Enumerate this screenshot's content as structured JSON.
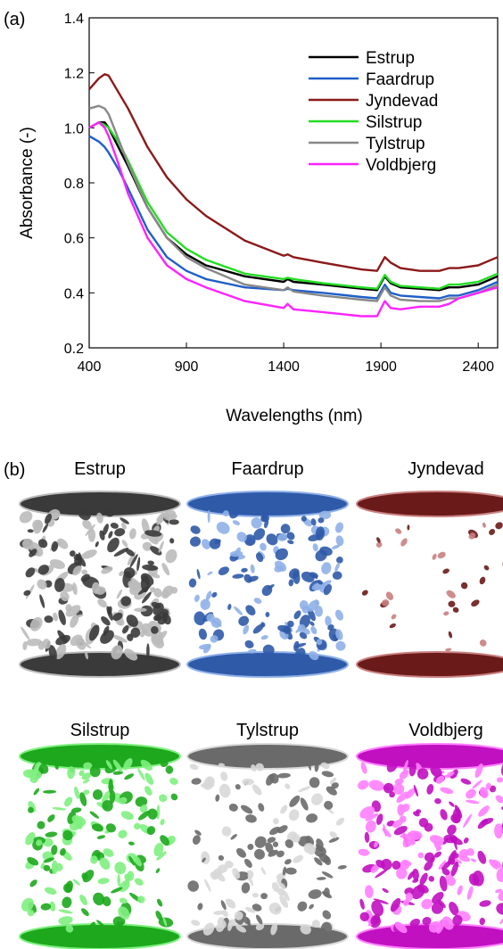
{
  "chart_data": {
    "type": "line",
    "panel_label": "(a)",
    "x_label": "Wavelengths (nm)",
    "y_label": "Absorbance (-)",
    "x": [
      400,
      450,
      480,
      500,
      550,
      600,
      700,
      800,
      900,
      1000,
      1200,
      1400,
      1420,
      1450,
      1600,
      1800,
      1880,
      1920,
      1950,
      2000,
      2100,
      2200,
      2250,
      2300,
      2400,
      2500
    ],
    "series": [
      {
        "name": "Estrup",
        "color": "#000000",
        "values": [
          1.0,
          1.02,
          1.02,
          1.0,
          0.93,
          0.86,
          0.71,
          0.6,
          0.54,
          0.5,
          0.46,
          0.44,
          0.45,
          0.44,
          0.43,
          0.415,
          0.41,
          0.46,
          0.435,
          0.42,
          0.415,
          0.41,
          0.42,
          0.42,
          0.43,
          0.46
        ]
      },
      {
        "name": "Faardrup",
        "color": "#1f5fc8",
        "values": [
          0.97,
          0.95,
          0.93,
          0.91,
          0.85,
          0.78,
          0.63,
          0.53,
          0.48,
          0.45,
          0.42,
          0.41,
          0.415,
          0.41,
          0.4,
          0.385,
          0.38,
          0.43,
          0.4,
          0.39,
          0.385,
          0.38,
          0.39,
          0.39,
          0.41,
          0.44
        ]
      },
      {
        "name": "Jyndevad",
        "color": "#8b1a1a",
        "values": [
          1.14,
          1.18,
          1.195,
          1.19,
          1.13,
          1.07,
          0.93,
          0.82,
          0.74,
          0.68,
          0.59,
          0.535,
          0.54,
          0.53,
          0.51,
          0.485,
          0.48,
          0.53,
          0.51,
          0.49,
          0.48,
          0.48,
          0.49,
          0.49,
          0.5,
          0.53
        ]
      },
      {
        "name": "Silstrup",
        "color": "#22dd22",
        "values": [
          1.0,
          1.02,
          1.01,
          1.0,
          0.95,
          0.88,
          0.73,
          0.62,
          0.56,
          0.52,
          0.47,
          0.45,
          0.455,
          0.45,
          0.435,
          0.42,
          0.415,
          0.465,
          0.44,
          0.425,
          0.42,
          0.415,
          0.43,
          0.43,
          0.44,
          0.47
        ]
      },
      {
        "name": "Tylstrup",
        "color": "#888888",
        "values": [
          1.07,
          1.08,
          1.07,
          1.05,
          0.96,
          0.87,
          0.71,
          0.6,
          0.53,
          0.49,
          0.43,
          0.41,
          0.42,
          0.405,
          0.39,
          0.375,
          0.37,
          0.42,
          0.39,
          0.375,
          0.37,
          0.37,
          0.38,
          0.38,
          0.4,
          0.43
        ]
      },
      {
        "name": "Voldbjerg",
        "color": "#ff22ff",
        "values": [
          1.0,
          1.02,
          1.0,
          0.97,
          0.87,
          0.76,
          0.6,
          0.5,
          0.45,
          0.42,
          0.37,
          0.345,
          0.36,
          0.34,
          0.33,
          0.315,
          0.315,
          0.37,
          0.345,
          0.34,
          0.35,
          0.35,
          0.36,
          0.38,
          0.4,
          0.42
        ]
      }
    ],
    "xlim": [
      400,
      2500
    ],
    "xticks": [
      400,
      900,
      1400,
      1900,
      2400
    ],
    "ylim": [
      0.2,
      1.4
    ],
    "yticks": [
      0.2,
      0.4,
      0.6,
      0.8,
      {
        "value": 1,
        "label": "1.0"
      },
      1.2,
      1.4
    ],
    "legend": "upper right",
    "grid": false
  },
  "panel_b": {
    "label": "(b)",
    "images": [
      {
        "title": "Estrup"
      },
      {
        "title": "Faardrup"
      },
      {
        "title": "Jyndevad"
      },
      {
        "title": "Silstrup"
      },
      {
        "title": "Tylstrup"
      },
      {
        "title": "Voldbjerg"
      }
    ]
  }
}
